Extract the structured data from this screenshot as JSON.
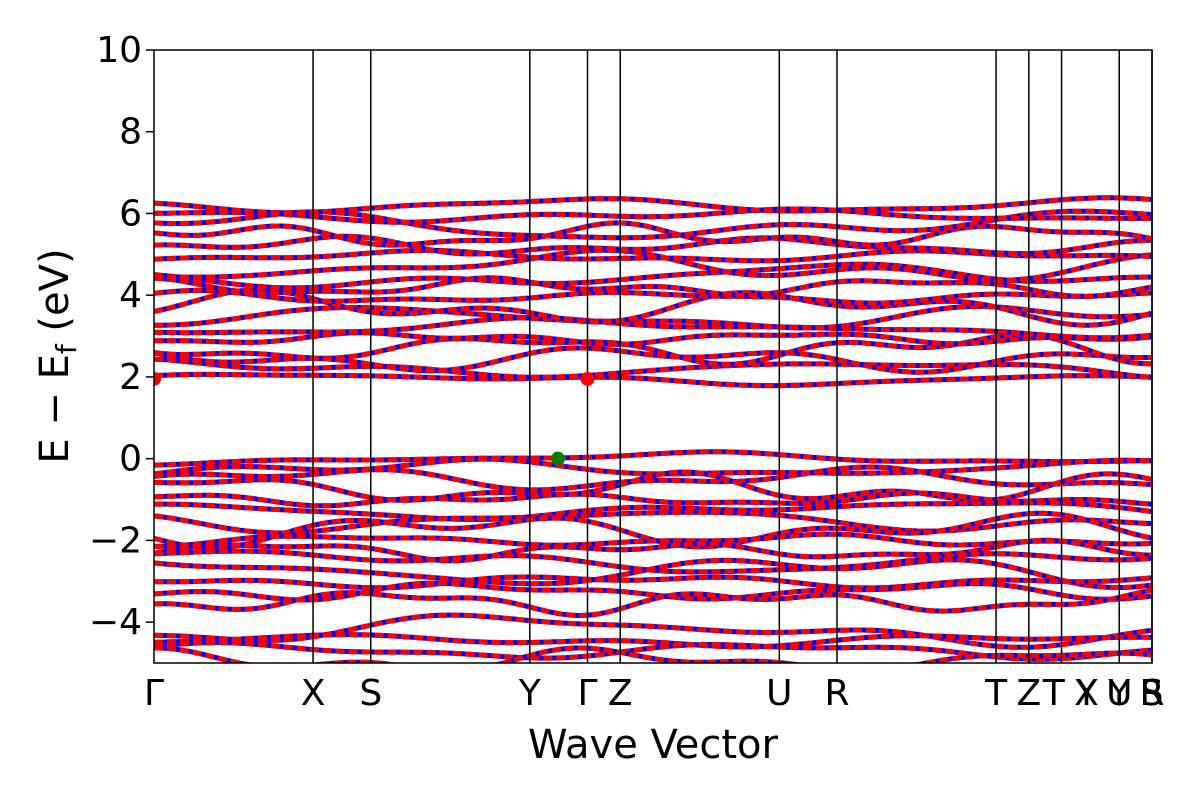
{
  "chart_data": {
    "type": "line",
    "title": "",
    "xlabel": "Wave Vector",
    "ylabel_main": "E − E",
    "ylabel_sub": "f",
    "ylabel_tail": " (eV)",
    "ylim": [
      -5,
      10
    ],
    "yticks": [
      -4,
      -2,
      0,
      2,
      4,
      6,
      8,
      10
    ],
    "ytick_labels": [
      "−4",
      "−2",
      "0",
      "2",
      "4",
      "6",
      "8",
      "10"
    ],
    "xlim": [
      0,
      6.4
    ],
    "kpath_labels": [
      {
        "label": "Γ",
        "x": 0.0
      },
      {
        "label": "X",
        "x": 1.02
      },
      {
        "label": "S",
        "x": 1.39
      },
      {
        "label": "Y",
        "x": 2.41
      },
      {
        "label": "Γ",
        "x": 2.78
      },
      {
        "label": "Z",
        "x": 2.99
      },
      {
        "label": "U",
        "x": 4.01
      },
      {
        "label": "R",
        "x": 4.38
      },
      {
        "label": "T",
        "x": 5.4
      },
      {
        "label": "Z",
        "x": 5.61
      },
      {
        "label": "T",
        "x": 5.77
      },
      {
        "label": "Y",
        "x": 5.98
      },
      {
        "label": "X",
        "x": 5.98
      },
      {
        "label": "U",
        "x": 6.19
      },
      {
        "label": "Y",
        "x": 6.19
      },
      {
        "label": "S",
        "x": 6.4
      },
      {
        "label": "R",
        "x": 6.4
      }
    ],
    "kpath_lines_x": [
      1.02,
      1.39,
      2.41,
      2.78,
      2.99,
      4.01,
      4.38,
      5.4,
      5.61,
      5.82,
      6.19,
      6.4
    ],
    "grid": false,
    "series_colors": {
      "spin_up": "#ff0000",
      "spin_down": "#0000ff"
    },
    "markers": [
      {
        "name": "cbm",
        "x": 0.0,
        "y": 1.95,
        "color": "#ff0000"
      },
      {
        "name": "cbm",
        "x": 2.78,
        "y": 1.95,
        "color": "#ff0000"
      },
      {
        "name": "vbm",
        "x": 2.59,
        "y": 0.0,
        "color": "#008000"
      }
    ],
    "conduction_band_offsets": [
      1.95,
      2.2,
      2.45,
      2.7,
      2.95,
      3.2,
      3.45,
      3.7,
      3.95,
      4.2,
      4.45,
      4.7,
      4.95,
      5.2,
      5.45,
      5.7,
      5.95,
      6.2
    ],
    "valence_band_offsets": [
      0.0,
      -0.25,
      -0.5,
      -0.75,
      -1.0,
      -1.25,
      -1.5,
      -1.75,
      -2.0,
      -2.25,
      -2.5,
      -2.75,
      -3.0,
      -3.25,
      -3.5,
      -4.2,
      -4.45,
      -4.7,
      -4.95
    ]
  }
}
